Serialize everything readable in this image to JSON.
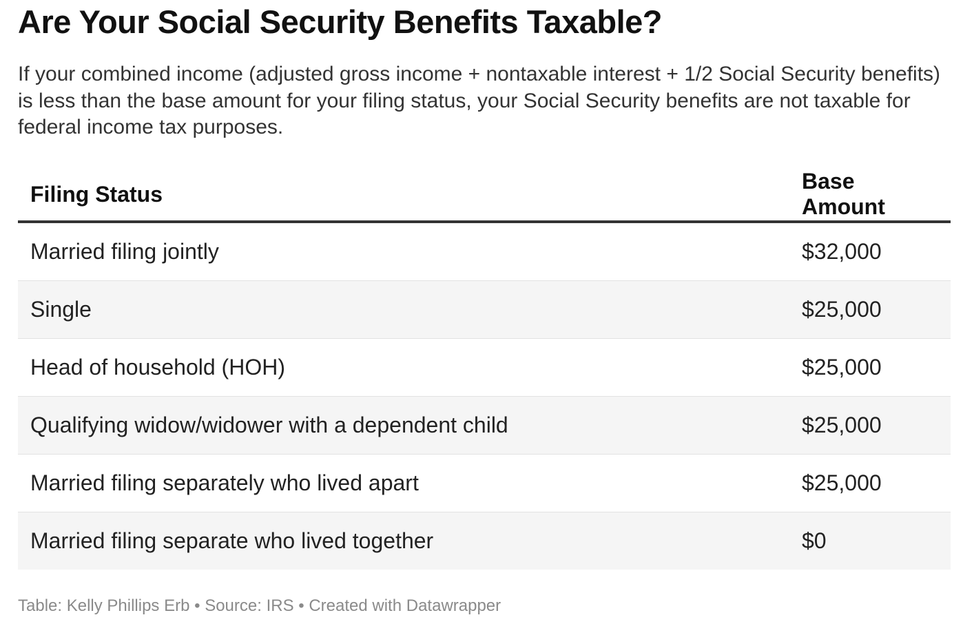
{
  "title": "Are Your Social Security Benefits Taxable?",
  "description": "If your combined income (adjusted gross income + nontaxable interest + 1/2 Social Security benefits) is less than the base amount for your filing status, your Social Security benefits are not taxable for federal income tax purposes.",
  "chart_data": {
    "type": "table",
    "title": "Are Your Social Security Benefits Taxable?",
    "columns": [
      "Filing Status",
      "Base Amount"
    ],
    "rows": [
      {
        "filing_status": "Married filing jointly",
        "base_amount": "$32,000"
      },
      {
        "filing_status": "Single",
        "base_amount": "$25,000"
      },
      {
        "filing_status": "Head of household (HOH)",
        "base_amount": "$25,000"
      },
      {
        "filing_status": "Qualifying widow/widower with a dependent child",
        "base_amount": "$25,000"
      },
      {
        "filing_status": "Married filing separately who lived apart",
        "base_amount": "$25,000"
      },
      {
        "filing_status": "Married filing separate who lived together",
        "base_amount": "$0"
      }
    ]
  },
  "footer": {
    "table_label": "Table: Kelly Phillips Erb",
    "separator": " • ",
    "source": "Source: IRS",
    "credit": "Created with Datawrapper"
  },
  "colors": {
    "text": "#1a1a1a",
    "header_rule": "#333333",
    "stripe": "#f5f5f5",
    "footer_text": "#8a8a8a"
  }
}
